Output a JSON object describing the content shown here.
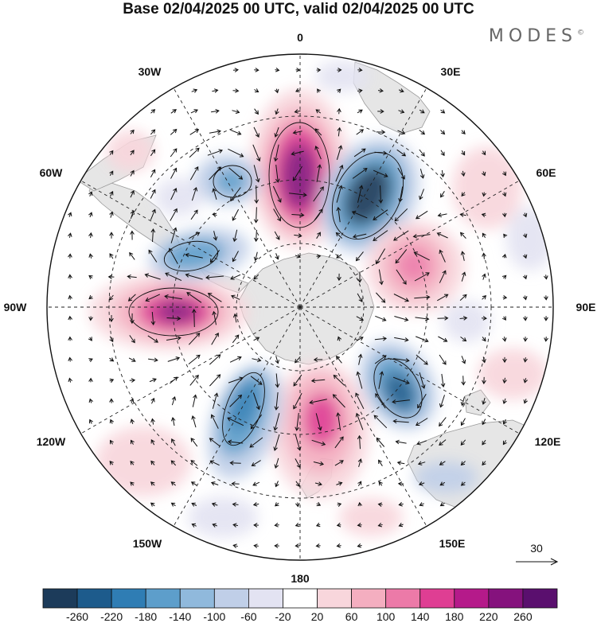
{
  "title": "Base 02/04/2025 00 UTC, valid 02/04/2025 00 UTC",
  "brand": "MODES",
  "brand_mark": "©",
  "map": {
    "projection": "south-polar-stereographic",
    "longitude_labels": [
      "0",
      "30E",
      "60E",
      "90E",
      "120E",
      "150E",
      "180",
      "150W",
      "120W",
      "90W",
      "60W",
      "30W"
    ],
    "graticule_dashed": true,
    "land_color": "#e6e6e6",
    "vector_reference": {
      "label": "30",
      "value": 30
    }
  },
  "anomaly_centers": [
    {
      "lon_label": "0",
      "sign": "positive",
      "peak": 240
    },
    {
      "lon_label": "30E",
      "sign": "negative",
      "peak": -260
    },
    {
      "lon_label": "60E",
      "sign": "positive",
      "peak": 160
    },
    {
      "lon_label": "120E",
      "sign": "negative",
      "peak": -200
    },
    {
      "lon_label": "180",
      "sign": "positive",
      "peak": 150
    },
    {
      "lon_label": "150W",
      "sign": "negative",
      "peak": -200
    },
    {
      "lon_label": "90W",
      "sign": "positive",
      "peak": 220
    },
    {
      "lon_label": "60W",
      "sign": "negative",
      "peak": -140
    },
    {
      "lon_label": "30W",
      "sign": "negative",
      "peak": -120
    }
  ],
  "colorbar": {
    "ticks": [
      "-260",
      "-220",
      "-180",
      "-140",
      "-100",
      "-60",
      "-20",
      "20",
      "60",
      "100",
      "140",
      "180",
      "220",
      "260"
    ],
    "colors": [
      "#1c3b5a",
      "#1d5b8c",
      "#2f7db4",
      "#5d9ecb",
      "#90b9dc",
      "#c0cfe8",
      "#e3e3f2",
      "#ffffff",
      "#f8d6dc",
      "#f4aec0",
      "#ec7aa8",
      "#df3e93",
      "#b51a8a",
      "#85127d",
      "#5a0f6e"
    ]
  }
}
